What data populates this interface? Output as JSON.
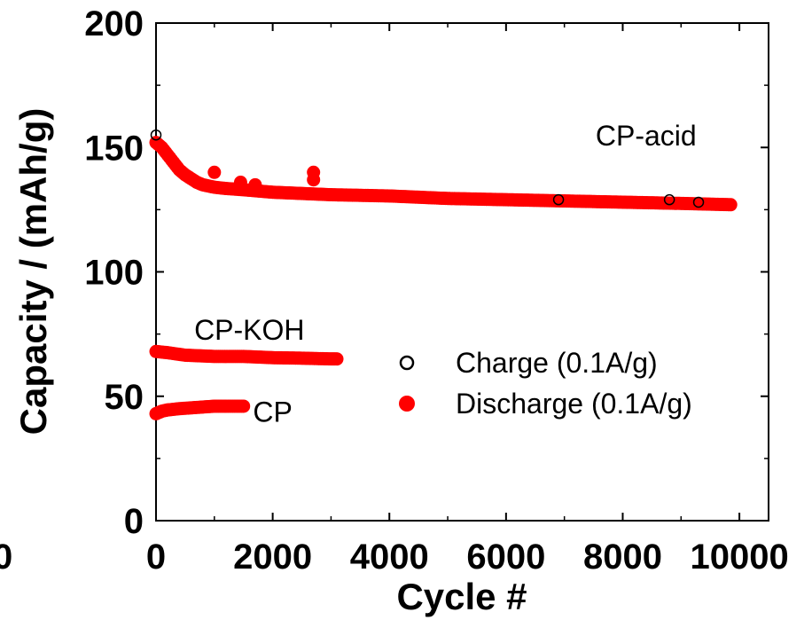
{
  "chart_data": {
    "type": "scatter",
    "title": "",
    "xlabel": "Cycle #",
    "ylabel": "Capacity / (mAh/g)",
    "xlim": [
      0,
      10500
    ],
    "ylim": [
      0,
      200
    ],
    "x_ticks": [
      0,
      2000,
      4000,
      6000,
      8000,
      10000
    ],
    "x_tick_labels": [
      "0",
      "2000",
      "4000",
      "6000",
      "8000",
      "10000"
    ],
    "y_ticks": [
      0,
      50,
      100,
      150,
      200
    ],
    "y_tick_labels": [
      "0",
      "50",
      "100",
      "150",
      "200"
    ],
    "clipped_left_label": "0",
    "grid": false,
    "legend_position": "right",
    "legend": [
      {
        "label": "Charge (0.1A/g)",
        "marker": "open-circle",
        "color": "#000000"
      },
      {
        "label": "Discharge (0.1A/g)",
        "marker": "filled-circle",
        "color": "#ff0000"
      }
    ],
    "annotations": [
      {
        "text": "CP-acid",
        "x": 8400,
        "y": 155
      },
      {
        "text": "CP-KOH",
        "x": 1600,
        "y": 77
      },
      {
        "text": "CP",
        "x": 2000,
        "y": 44
      }
    ],
    "series": [
      {
        "name": "CP-acid",
        "points": [
          [
            0,
            152
          ],
          [
            100,
            150
          ],
          [
            200,
            147
          ],
          [
            300,
            144
          ],
          [
            400,
            141
          ],
          [
            500,
            139
          ],
          [
            600,
            137.5
          ],
          [
            700,
            136
          ],
          [
            800,
            135
          ],
          [
            900,
            134.5
          ],
          [
            1000,
            134
          ],
          [
            1200,
            133.5
          ],
          [
            1500,
            133
          ],
          [
            2000,
            132
          ],
          [
            2500,
            131.5
          ],
          [
            3000,
            131
          ],
          [
            4000,
            130.5
          ],
          [
            5000,
            129.5
          ],
          [
            6000,
            129
          ],
          [
            7000,
            128.5
          ],
          [
            8000,
            128
          ],
          [
            9000,
            127.5
          ],
          [
            9850,
            127
          ]
        ],
        "outliers": [
          [
            1000,
            140
          ],
          [
            1450,
            136
          ],
          [
            1700,
            135
          ],
          [
            2700,
            140
          ],
          [
            2700,
            137
          ]
        ],
        "charge_visible": [
          [
            0,
            155
          ],
          [
            6900,
            129
          ],
          [
            8800,
            129
          ],
          [
            9300,
            128
          ]
        ]
      },
      {
        "name": "CP-KOH",
        "points": [
          [
            0,
            68
          ],
          [
            200,
            67.5
          ],
          [
            500,
            66.5
          ],
          [
            1000,
            66
          ],
          [
            1500,
            66
          ],
          [
            2000,
            65.5
          ],
          [
            2500,
            65.3
          ],
          [
            3000,
            65
          ],
          [
            3100,
            65
          ]
        ],
        "outliers": [],
        "charge_visible": []
      },
      {
        "name": "CP",
        "points": [
          [
            0,
            43
          ],
          [
            100,
            44
          ],
          [
            200,
            44.5
          ],
          [
            400,
            45
          ],
          [
            700,
            45.5
          ],
          [
            1000,
            46
          ],
          [
            1200,
            46
          ],
          [
            1500,
            46
          ]
        ],
        "outliers": [],
        "charge_visible": []
      }
    ]
  }
}
